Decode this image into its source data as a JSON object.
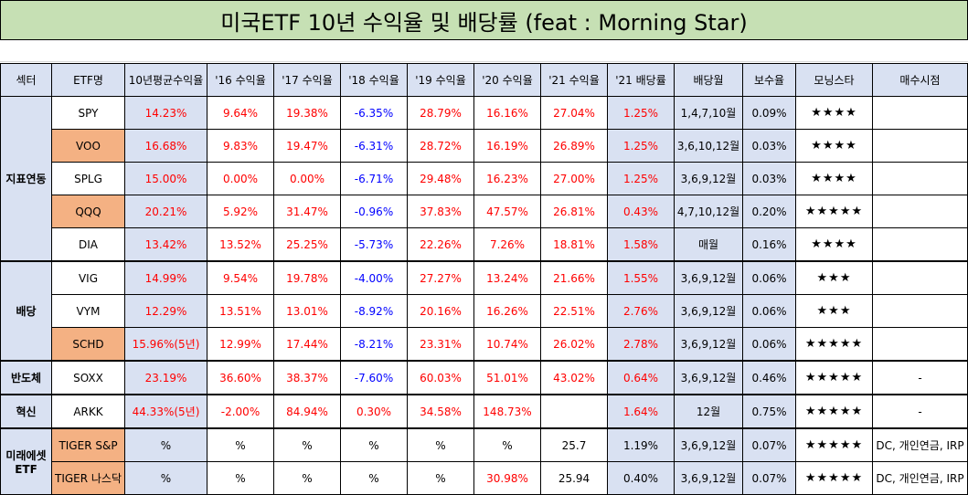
{
  "title": "미국ETF 10년 수익율 및 배당률 (feat : Morning Star)",
  "headers": [
    "섹터",
    "ETF명",
    "10년평균수익율",
    "'16 수익율",
    "'17 수익율",
    "'18 수익율",
    "'19 수익율",
    "'20 수익율",
    "'21 수익율",
    "'21 배당률",
    "배당월",
    "보수율",
    "모닝스타",
    "매수시점"
  ],
  "sectors": [
    {
      "name": "지표연동",
      "rowspan": 5
    },
    {
      "name": "배당",
      "rowspan": 3
    },
    {
      "name": "반도체",
      "rowspan": 1
    },
    {
      "name": "혁신",
      "rowspan": 1
    },
    {
      "name": "미래에셋 ETF",
      "rowspan": 2
    }
  ],
  "rows": [
    {
      "etf": "SPY",
      "avg": "14.23%",
      "y16": "9.64%",
      "y17": "19.38%",
      "y18": "-6.35%",
      "y19": "28.79%",
      "y20": "16.16%",
      "y21": "27.04%",
      "div": "1.25%",
      "months": "1,4,7,10월",
      "fee": "0.09%",
      "stars": "★★★★",
      "buy": ""
    },
    {
      "etf": "VOO",
      "avg": "16.68%",
      "y16": "9.83%",
      "y17": "19.47%",
      "y18": "-6.31%",
      "y19": "28.72%",
      "y20": "16.19%",
      "y21": "26.89%",
      "div": "1.25%",
      "months": "3,6,10,12월",
      "fee": "0.03%",
      "stars": "★★★★",
      "buy": ""
    },
    {
      "etf": "SPLG",
      "avg": "15.00%",
      "y16": "0.00%",
      "y17": "0.00%",
      "y18": "-6.71%",
      "y19": "29.48%",
      "y20": "16.23%",
      "y21": "27.00%",
      "div": "1.25%",
      "months": "3,6,9,12월",
      "fee": "0.03%",
      "stars": "★★★★",
      "buy": ""
    },
    {
      "etf": "QQQ",
      "avg": "20.21%",
      "y16": "5.92%",
      "y17": "31.47%",
      "y18": "-0.96%",
      "y19": "37.83%",
      "y20": "47.57%",
      "y21": "26.81%",
      "div": "0.43%",
      "months": "4,7,10,12월",
      "fee": "0.20%",
      "stars": "★★★★★",
      "buy": ""
    },
    {
      "etf": "DIA",
      "avg": "13.42%",
      "y16": "13.52%",
      "y17": "25.25%",
      "y18": "-5.73%",
      "y19": "22.26%",
      "y20": "7.26%",
      "y21": "18.81%",
      "div": "1.58%",
      "months": "매월",
      "fee": "0.16%",
      "stars": "★★★★",
      "buy": ""
    },
    {
      "etf": "VIG",
      "avg": "14.99%",
      "y16": "9.54%",
      "y17": "19.78%",
      "y18": "-4.00%",
      "y19": "27.27%",
      "y20": "13.24%",
      "y21": "21.66%",
      "div": "1.55%",
      "months": "3,6,9,12월",
      "fee": "0.06%",
      "stars": "★★★",
      "buy": ""
    },
    {
      "etf": "VYM",
      "avg": "12.29%",
      "y16": "13.51%",
      "y17": "13.01%",
      "y18": "-8.92%",
      "y19": "20.16%",
      "y20": "16.26%",
      "y21": "22.51%",
      "div": "2.76%",
      "months": "3,6,9,12월",
      "fee": "0.06%",
      "stars": "★★★",
      "buy": ""
    },
    {
      "etf": "SCHD",
      "avg": "15.96%(5년)",
      "y16": "12.99%",
      "y17": "17.44%",
      "y18": "-8.21%",
      "y19": "23.31%",
      "y20": "10.74%",
      "y21": "26.02%",
      "div": "2.78%",
      "months": "3,6,9,12월",
      "fee": "0.06%",
      "stars": "★★★★★",
      "buy": ""
    },
    {
      "etf": "SOXX",
      "avg": "23.19%",
      "y16": "36.60%",
      "y17": "38.37%",
      "y18": "-7.60%",
      "y19": "60.03%",
      "y20": "51.01%",
      "y21": "43.02%",
      "div": "0.64%",
      "months": "3,6,9,12월",
      "fee": "0.46%",
      "stars": "★★★★★",
      "buy": "-"
    },
    {
      "etf": "ARKK",
      "avg": "44.33%(5년)",
      "y16": "-2.00%",
      "y17": "84.94%",
      "y18": "0.30%",
      "y19": "34.58%",
      "y20": "148.73%",
      "y21": "",
      "div": "1.64%",
      "months": "12월",
      "fee": "0.75%",
      "stars": "★★★★★",
      "buy": "-"
    },
    {
      "etf": "TIGER S&P",
      "avg": "%",
      "y16": "%",
      "y17": "%",
      "y18": "%",
      "y19": "%",
      "y20": "%",
      "y21": "25.7",
      "div": "1.19%",
      "months": "3,6,9,12월",
      "fee": "0.07%",
      "stars": "★★★★★",
      "buy": "DC, 개인연금, IRP"
    },
    {
      "etf": "TIGER 나스닥",
      "avg": "%",
      "y16": "%",
      "y17": "%",
      "y18": "%",
      "y19": "%",
      "y20": "30.98%",
      "y21": "25.94",
      "div": "0.40%",
      "months": "3,6,9,12월",
      "fee": "0.07%",
      "stars": "★★★★★",
      "buy": "DC, 개인연금, IRP"
    }
  ]
}
